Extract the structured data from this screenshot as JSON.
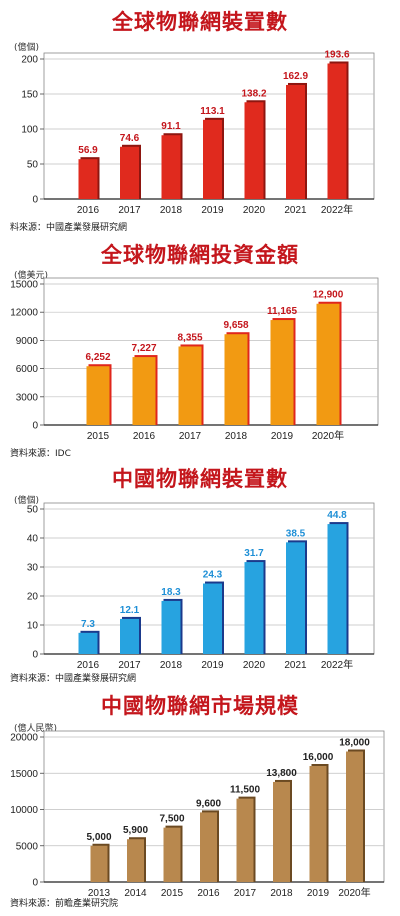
{
  "chart_data": [
    {
      "type": "bar",
      "title": "全球物聯網裝置數",
      "unit": "(億個)",
      "categories": [
        "2016",
        "2017",
        "2018",
        "2019",
        "2020",
        "2021",
        "2022年"
      ],
      "values": [
        56.9,
        74.6,
        91.1,
        113.1,
        138.2,
        162.9,
        193.6
      ],
      "value_labels": [
        "56.9",
        "74.6",
        "91.1",
        "113.1",
        "138.2",
        "162.9",
        "193.6"
      ],
      "yticks": [
        0,
        50,
        100,
        150,
        200
      ],
      "ylim": [
        0,
        200
      ],
      "grid": true,
      "source": "料來源：中國產業發展研究網",
      "colors": {
        "bar": "#e02a1e",
        "bar_dark": "#8e1610",
        "label": "#c4161c"
      }
    },
    {
      "type": "bar",
      "title": "全球物聯網投資金額",
      "unit": "(億美元)",
      "categories": [
        "2015",
        "2016",
        "2017",
        "2018",
        "2019",
        "2020年"
      ],
      "values": [
        6252,
        7227,
        8355,
        9658,
        11165,
        12900
      ],
      "value_labels": [
        "6,252",
        "7,227",
        "8,355",
        "9,658",
        "11,165",
        "12,900"
      ],
      "yticks": [
        0,
        3000,
        6000,
        9000,
        12000,
        15000
      ],
      "ylim": [
        0,
        15000
      ],
      "grid": true,
      "source": "資料來源：IDC",
      "colors": {
        "bar": "#f29a12",
        "bar_dark": "#e0261c",
        "label": "#c4161c"
      }
    },
    {
      "type": "bar",
      "title": "中國物聯網裝置數",
      "unit": "(億個)",
      "categories": [
        "2016",
        "2017",
        "2018",
        "2019",
        "2020",
        "2021",
        "2022年"
      ],
      "values": [
        7.3,
        12.1,
        18.3,
        24.3,
        31.7,
        38.5,
        44.8
      ],
      "value_labels": [
        "7.3",
        "12.1",
        "18.3",
        "24.3",
        "31.7",
        "38.5",
        "44.8"
      ],
      "yticks": [
        0,
        10,
        20,
        30,
        40,
        50
      ],
      "ylim": [
        0,
        50
      ],
      "grid": true,
      "source": "資料來源：中國產業發展研究網",
      "colors": {
        "bar": "#27a3e0",
        "bar_dark": "#1b3a8c",
        "label": "#1e8fd6"
      }
    },
    {
      "type": "bar",
      "title": "中國物聯網市場規模",
      "unit": "(億人民幣)",
      "categories": [
        "2013",
        "2014",
        "2015",
        "2016",
        "2017",
        "2018",
        "2019",
        "2020年"
      ],
      "values": [
        5000,
        5900,
        7500,
        9600,
        11500,
        13800,
        16000,
        18000
      ],
      "value_labels": [
        "5,000",
        "5,900",
        "7,500",
        "9,600",
        "11,500",
        "13,800",
        "16,000",
        "18,000"
      ],
      "yticks": [
        0,
        5000,
        10000,
        15000,
        20000
      ],
      "ylim": [
        0,
        20000
      ],
      "grid": true,
      "source": "資料來源：前瞻產業研究院",
      "colors": {
        "bar": "#b8884e",
        "bar_dark": "#6b4a22",
        "label": "#222222"
      }
    }
  ]
}
